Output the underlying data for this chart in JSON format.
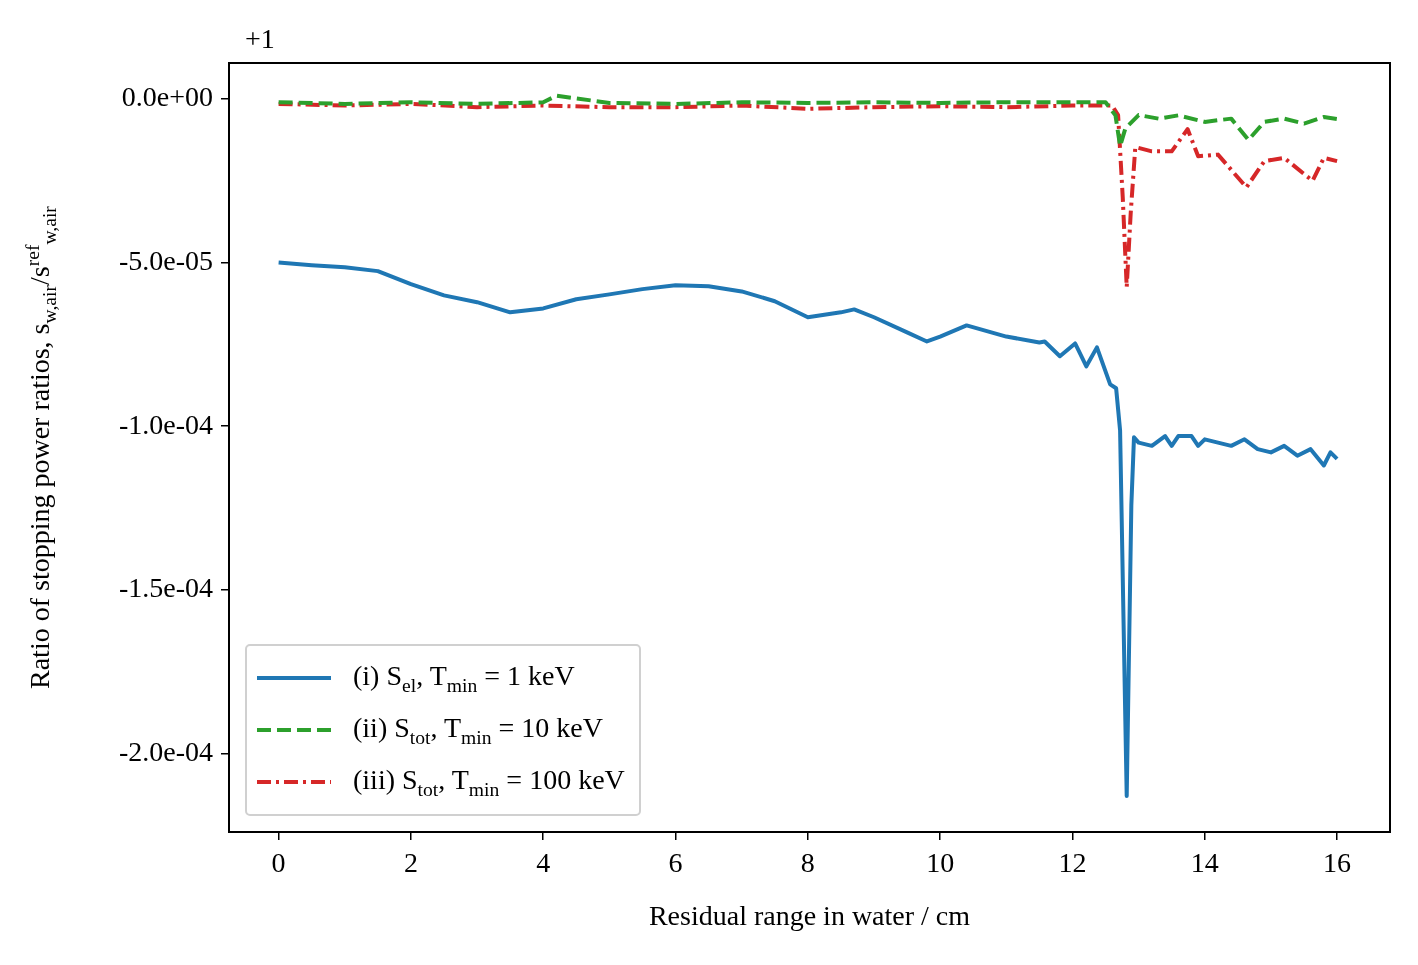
{
  "chart_data": {
    "type": "line",
    "xlabel": "Residual range in water / cm",
    "ylabel": "Ratio of stopping power ratios, s$_{w,air}$/s$^{ref}$$_{w,air}$",
    "annotations": [
      "+1"
    ],
    "xlim": [
      -0.75,
      16.8
    ],
    "xticks": [
      0,
      2,
      4,
      6,
      8,
      10,
      12,
      14,
      16
    ],
    "ylim": [
      -0.000224,
      1.1e-05
    ],
    "yticks": [
      {
        "value": -0.0002,
        "label": "-2.0e-04"
      },
      {
        "value": -0.00015,
        "label": "-1.5e-04"
      },
      {
        "value": -0.0001,
        "label": "-1.0e-04"
      },
      {
        "value": -5e-05,
        "label": "-5.0e-05"
      },
      {
        "value": 0,
        "label": "0.0e+00"
      }
    ],
    "grid": false,
    "legend": "bottom left",
    "marker": "none",
    "series": [
      {
        "name": "(i) S$_{el}$, T$_{min}$ = 1 keV",
        "color": "#1f77b4",
        "line_style": "solid",
        "x": [
          0,
          0.5,
          1,
          1.5,
          2,
          2.5,
          3,
          3.5,
          4,
          4.5,
          5,
          5.5,
          6,
          6.5,
          7,
          7.5,
          8,
          8.5,
          8.7,
          9,
          9.5,
          9.8,
          10,
          10.4,
          11,
          11.5,
          11.58,
          11.81,
          12.04,
          12.21,
          12.37,
          12.57,
          12.66,
          12.72,
          12.82,
          12.89,
          12.93,
          13.0,
          13.2,
          13.4,
          13.5,
          13.6,
          13.8,
          13.9,
          14.0,
          14.2,
          14.4,
          14.6,
          14.8,
          15.0,
          15.2,
          15.4,
          15.6,
          15.8,
          15.9,
          16
        ],
        "values": [
          -5e-05,
          -5.08e-05,
          -5.14e-05,
          -5.26e-05,
          -5.66e-05,
          -6e-05,
          -6.21e-05,
          -6.52e-05,
          -6.4e-05,
          -6.12e-05,
          -5.97e-05,
          -5.81e-05,
          -5.69e-05,
          -5.72e-05,
          -5.88e-05,
          -6.18e-05,
          -6.67e-05,
          -6.52e-05,
          -6.43e-05,
          -6.67e-05,
          -7.13e-05,
          -7.41e-05,
          -7.26e-05,
          -6.92e-05,
          -7.26e-05,
          -7.44e-05,
          -7.41e-05,
          -7.86e-05,
          -7.47e-05,
          -8.17e-05,
          -7.59e-05,
          -8.72e-05,
          -8.84e-05,
          -0.0001013,
          -0.000213,
          -0.0001242,
          -0.0001034,
          -0.000105,
          -0.000106,
          -0.000103,
          -0.000106,
          -0.000103,
          -0.000103,
          -0.000106,
          -0.000104,
          -0.000105,
          -0.000106,
          -0.000104,
          -0.000107,
          -0.000108,
          -0.000106,
          -0.000109,
          -0.000107,
          -0.000112,
          -0.000108,
          -0.00011
        ]
      },
      {
        "name": "(ii) S$_{tot}$, T$_{min}$ = 10 keV",
        "color": "#2ca02c",
        "line_style": "dashed",
        "x": [
          0,
          1,
          2,
          3,
          4,
          4.2,
          5,
          6,
          7,
          8,
          9,
          10,
          11,
          12,
          12.5,
          12.65,
          12.72,
          12.8,
          13.0,
          13.3,
          13.6,
          14.0,
          14.4,
          14.66,
          14.9,
          15.2,
          15.5,
          15.8,
          16
        ],
        "values": [
          -1e-06,
          -1.5e-06,
          -1e-06,
          -1.5e-06,
          -1e-06,
          1e-06,
          -1.2e-06,
          -1.5e-06,
          -1e-06,
          -1.2e-06,
          -1e-06,
          -1.2e-06,
          -1e-06,
          -1e-06,
          -1e-06,
          -5e-06,
          -1.44e-05,
          -9e-06,
          -4.9e-06,
          -6e-06,
          -5e-06,
          -7e-06,
          -6e-06,
          -1.25e-05,
          -7e-06,
          -6e-06,
          -7.5e-06,
          -5.5e-06,
          -6.1e-06
        ]
      },
      {
        "name": "(iii) S$_{tot}$, T$_{min}$ = 100 keV",
        "color": "#d62728",
        "line_style": "dashdot",
        "x": [
          0,
          1,
          2,
          3,
          4,
          5,
          6,
          7,
          8,
          9,
          10,
          11,
          12,
          12.6,
          12.69,
          12.76,
          12.82,
          12.88,
          12.95,
          13.2,
          13.5,
          13.74,
          13.9,
          14.2,
          14.63,
          14.9,
          15.2,
          15.63,
          15.8,
          16
        ],
        "values": [
          -1.5e-06,
          -2e-06,
          -1.5e-06,
          -2.5e-06,
          -2e-06,
          -2.5e-06,
          -2.5e-06,
          -2e-06,
          -3e-06,
          -2.5e-06,
          -2.2e-06,
          -2.5e-06,
          -2e-06,
          -2e-06,
          -4.9e-06,
          -3e-05,
          -5.75e-05,
          -3.5e-05,
          -1.47e-05,
          -1.6e-05,
          -1.6e-05,
          -9.2e-06,
          -1.75e-05,
          -1.7e-05,
          -2.7e-05,
          -1.9e-05,
          -1.8e-05,
          -2.5e-05,
          -1.8e-05,
          -1.9e-05
        ]
      }
    ]
  }
}
